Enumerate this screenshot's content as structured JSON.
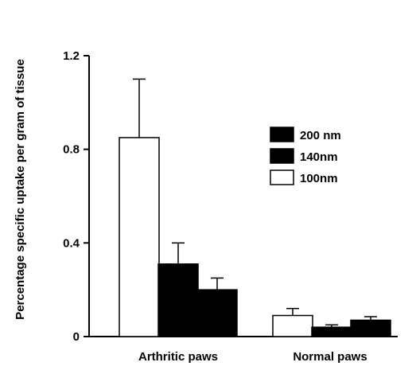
{
  "chart_data": {
    "type": "bar",
    "title": "",
    "xlabel": "",
    "ylabel": "Percentage specific uptake per gram of tissue",
    "ylim": [
      0,
      1.2
    ],
    "yticks": [
      "0",
      "0.4",
      "0.8",
      "1.2"
    ],
    "categories": [
      "Arthritic paws",
      "Normal paws"
    ],
    "series": [
      {
        "name": "100nm",
        "color": "#ffffff",
        "values": [
          0.85,
          0.09
        ],
        "errors": [
          0.25,
          0.03
        ]
      },
      {
        "name": "200nm",
        "color": "#000000",
        "values": [
          0.31,
          0.04
        ],
        "errors": [
          0.09,
          0.01
        ]
      },
      {
        "name": "140nm",
        "color": "#000000",
        "values": [
          0.2,
          0.07
        ],
        "errors": [
          0.05,
          0.015
        ]
      }
    ],
    "legend": {
      "placement": "top-right",
      "entries": [
        {
          "label": "200 nm",
          "color": "#000000"
        },
        {
          "label": "140nm",
          "color": "#000000"
        },
        {
          "label": "100nm",
          "color": "#ffffff"
        }
      ]
    },
    "grid": false
  }
}
